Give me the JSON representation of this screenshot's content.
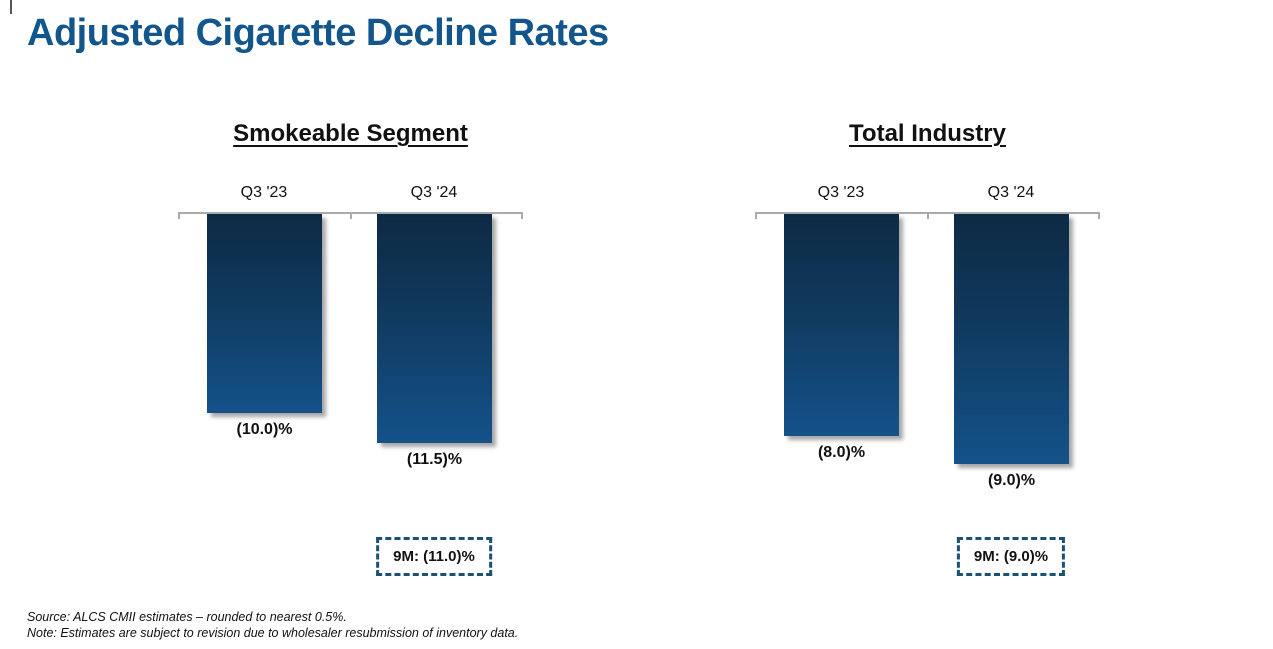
{
  "page": {
    "title": "Adjusted Cigarette Decline Rates"
  },
  "colors": {
    "title_blue": "#12568C",
    "bar_gradient_top": "#0D2A44",
    "bar_gradient_bottom": "#14528A",
    "axis_gray": "#ABABAB",
    "annotation_border_blue": "#1B5173",
    "text_black": "#111111"
  },
  "chart_data": [
    {
      "type": "bar",
      "title": "Smokeable Segment",
      "categories": [
        "Q3 '23",
        "Q3 '24"
      ],
      "values": [
        -10.0,
        -11.5
      ],
      "data_labels": [
        "(10.0)%",
        "(11.5)%"
      ],
      "annotation": "9M: (11.0)%",
      "ylabel": "",
      "xlabel": "",
      "ylim": [
        0,
        -12
      ],
      "grid": false,
      "legend": false,
      "bars_hang_below_axis": true
    },
    {
      "type": "bar",
      "title": "Total Industry",
      "categories": [
        "Q3 '23",
        "Q3 '24"
      ],
      "values": [
        -8.0,
        -9.0
      ],
      "data_labels": [
        "(8.0)%",
        "(9.0)%"
      ],
      "annotation": "9M: (9.0)%",
      "ylabel": "",
      "xlabel": "",
      "ylim": [
        0,
        -9.5
      ],
      "grid": false,
      "legend": false,
      "bars_hang_below_axis": true
    }
  ],
  "footer": {
    "source": "Source: ALCS CMII estimates – rounded to nearest 0.5%.",
    "note": "Note: Estimates are subject to revision due to wholesaler resubmission of inventory data."
  }
}
